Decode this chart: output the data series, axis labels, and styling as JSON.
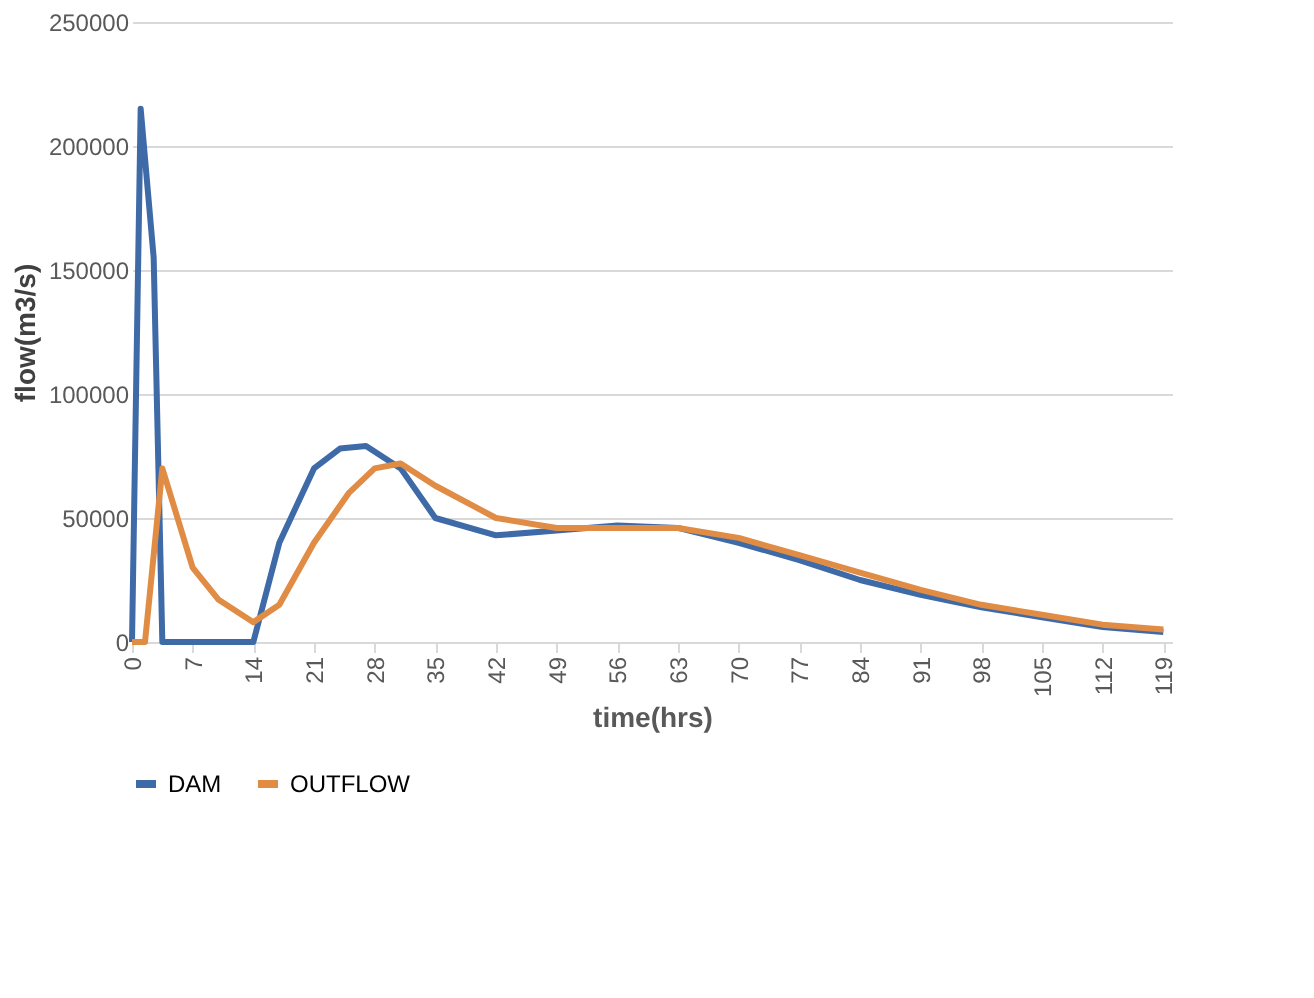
{
  "chart_data": {
    "type": "line",
    "xlabel": "time(hrs)",
    "ylabel": "flow(m3/s)",
    "xlim": [
      0,
      120
    ],
    "xticks": [
      0,
      7,
      14,
      21,
      28,
      35,
      42,
      49,
      56,
      63,
      70,
      77,
      84,
      91,
      98,
      105,
      112,
      119
    ],
    "ylim": [
      0,
      250000
    ],
    "yticks": [
      0,
      50000,
      100000,
      150000,
      200000,
      250000
    ],
    "grid": "y",
    "legend": "bottom",
    "marker": "none",
    "line_style": "solid",
    "series": [
      {
        "name": "DAM",
        "color": "#3e6aa8",
        "x": [
          0,
          1,
          2.5,
          3.5,
          7,
          14,
          17,
          21,
          24,
          27,
          31,
          35,
          42,
          49,
          56,
          63,
          70,
          77,
          84,
          91,
          98,
          105,
          112,
          119
        ],
        "values": [
          0,
          215000,
          155000,
          0,
          0,
          0,
          40000,
          70000,
          78000,
          79000,
          70000,
          50000,
          43000,
          45000,
          47000,
          46000,
          40000,
          33000,
          25000,
          19000,
          14000,
          10000,
          6000,
          4000
        ]
      },
      {
        "name": "OUTFLOW",
        "color": "#e08c45",
        "x": [
          0,
          1.5,
          3.5,
          7,
          10,
          14,
          17,
          21,
          25,
          28,
          31,
          35,
          42,
          49,
          56,
          63,
          70,
          77,
          84,
          91,
          98,
          105,
          112,
          119
        ],
        "values": [
          0,
          0,
          70000,
          30000,
          17000,
          8000,
          15000,
          40000,
          60000,
          70000,
          72000,
          63000,
          50000,
          46000,
          46000,
          46000,
          42000,
          35000,
          28000,
          21000,
          15000,
          11000,
          7000,
          5000
        ]
      }
    ]
  }
}
